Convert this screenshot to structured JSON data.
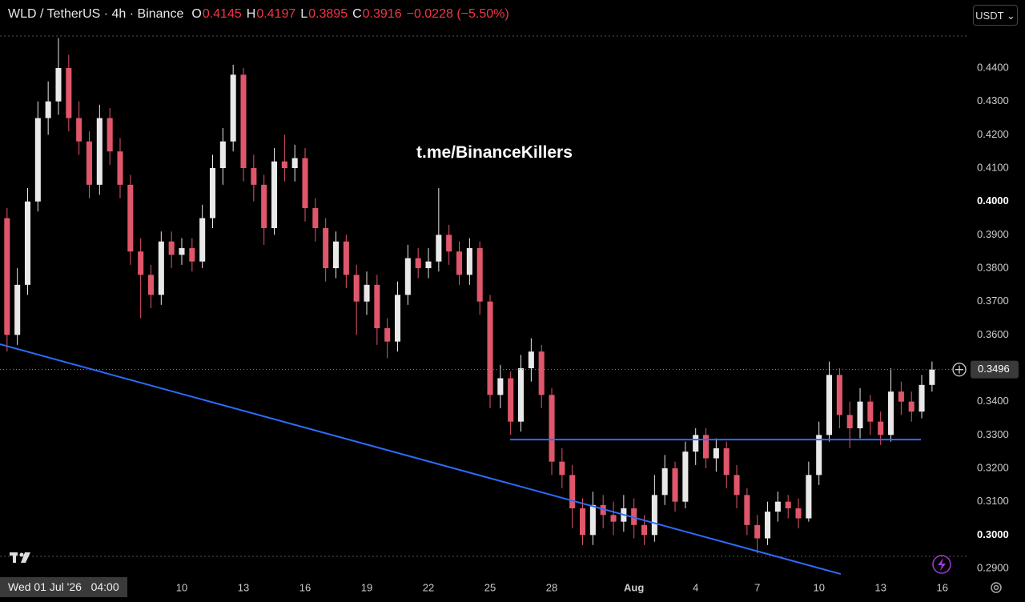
{
  "chart_data": {
    "type": "candlestick",
    "title": "WLD / TetherUS · 4h · Binance",
    "ohlc": [
      {
        "label": "O",
        "value": "0.4145"
      },
      {
        "label": "H",
        "value": "0.4197"
      },
      {
        "label": "L",
        "value": "0.3895"
      },
      {
        "label": "C",
        "value": "0.3916"
      }
    ],
    "change": "−0.0228 (−5.50%)",
    "currency": "USDT",
    "watermark": "t.me/BinanceKillers",
    "crosshair_label": "Wed 01 Jul '26   04:00",
    "up_color": "#e9e9e9",
    "down_color": "#e0566a",
    "line_color": "#2f6bff",
    "x": [
      0,
      0.5,
      1,
      1.5,
      2,
      2.5,
      3,
      3.5,
      4,
      4.5,
      5,
      5.5,
      6,
      6.5,
      7,
      7.5,
      8,
      8.5,
      9,
      9.5,
      10,
      10.5,
      11,
      11.5,
      12,
      12.5,
      13,
      13.5,
      14,
      14.5,
      15,
      15.5,
      16,
      16.5,
      17,
      17.5,
      18,
      18.5,
      19,
      19.5,
      20,
      20.5,
      21,
      21.5,
      22,
      22.5,
      23,
      23.5,
      24,
      24.5,
      25,
      25.5,
      26,
      26.5,
      27,
      27.5,
      28,
      28.5,
      29,
      29.5,
      30,
      30.5,
      31,
      31.5,
      32,
      32.5,
      33,
      33.5,
      34,
      34.5,
      35,
      35.5,
      36,
      36.5,
      37,
      37.5,
      38,
      38.5,
      39,
      39.5,
      40,
      40.5,
      41,
      41.5,
      42,
      42.5,
      43,
      43.5,
      44,
      44.5,
      45,
      45.5
    ],
    "open": [
      0.41,
      0.395,
      0.36,
      0.375,
      0.4,
      0.425,
      0.43,
      0.44,
      0.425,
      0.418,
      0.405,
      0.425,
      0.415,
      0.405,
      0.385,
      0.378,
      0.372,
      0.388,
      0.384,
      0.386,
      0.382,
      0.395,
      0.41,
      0.418,
      0.438,
      0.41,
      0.405,
      0.392,
      0.412,
      0.41,
      0.413,
      0.398,
      0.392,
      0.38,
      0.388,
      0.378,
      0.37,
      0.375,
      0.362,
      0.358,
      0.372,
      0.383,
      0.38,
      0.382,
      0.39,
      0.385,
      0.378,
      0.386,
      0.37,
      0.342,
      0.347,
      0.334,
      0.35,
      0.355,
      0.342,
      0.322,
      0.318,
      0.308,
      0.3,
      0.309,
      0.306,
      0.304,
      0.308,
      0.303,
      0.3,
      0.312,
      0.32,
      0.31,
      0.325,
      0.33,
      0.323,
      0.326,
      0.318,
      0.312,
      0.303,
      0.299,
      0.307,
      0.31,
      0.308,
      0.305,
      0.318,
      0.33,
      0.348,
      0.336,
      0.332,
      0.34,
      0.334,
      0.33,
      0.343,
      0.34,
      0.337,
      0.345
    ],
    "high": [
      0.414,
      0.398,
      0.38,
      0.404,
      0.43,
      0.436,
      0.449,
      0.444,
      0.43,
      0.421,
      0.429,
      0.428,
      0.419,
      0.408,
      0.389,
      0.381,
      0.391,
      0.391,
      0.389,
      0.389,
      0.399,
      0.414,
      0.422,
      0.441,
      0.44,
      0.414,
      0.408,
      0.416,
      0.42,
      0.417,
      0.416,
      0.401,
      0.395,
      0.391,
      0.39,
      0.381,
      0.379,
      0.378,
      0.365,
      0.376,
      0.387,
      0.386,
      0.386,
      0.404,
      0.393,
      0.388,
      0.389,
      0.388,
      0.372,
      0.351,
      0.349,
      0.354,
      0.359,
      0.357,
      0.344,
      0.326,
      0.321,
      0.311,
      0.313,
      0.312,
      0.31,
      0.312,
      0.311,
      0.306,
      0.318,
      0.324,
      0.322,
      0.328,
      0.332,
      0.332,
      0.329,
      0.328,
      0.321,
      0.314,
      0.306,
      0.31,
      0.313,
      0.312,
      0.311,
      0.322,
      0.334,
      0.352,
      0.35,
      0.34,
      0.344,
      0.342,
      0.337,
      0.35,
      0.346,
      0.343,
      0.348,
      0.352
    ],
    "low": [
      0.392,
      0.355,
      0.357,
      0.372,
      0.397,
      0.42,
      0.426,
      0.421,
      0.414,
      0.401,
      0.402,
      0.411,
      0.401,
      0.381,
      0.365,
      0.368,
      0.369,
      0.38,
      0.381,
      0.379,
      0.38,
      0.392,
      0.405,
      0.415,
      0.406,
      0.4,
      0.387,
      0.39,
      0.406,
      0.406,
      0.394,
      0.388,
      0.376,
      0.377,
      0.374,
      0.36,
      0.366,
      0.357,
      0.353,
      0.355,
      0.369,
      0.377,
      0.377,
      0.379,
      0.381,
      0.375,
      0.375,
      0.366,
      0.338,
      0.338,
      0.33,
      0.331,
      0.346,
      0.338,
      0.318,
      0.314,
      0.302,
      0.297,
      0.297,
      0.302,
      0.3,
      0.301,
      0.299,
      0.297,
      0.298,
      0.309,
      0.307,
      0.308,
      0.321,
      0.32,
      0.319,
      0.314,
      0.308,
      0.3,
      0.2945,
      0.297,
      0.304,
      0.305,
      0.302,
      0.304,
      0.315,
      0.328,
      0.332,
      0.326,
      0.329,
      0.33,
      0.327,
      0.328,
      0.336,
      0.334,
      0.335,
      0.343
    ],
    "close": [
      0.395,
      0.36,
      0.375,
      0.4,
      0.425,
      0.43,
      0.44,
      0.425,
      0.418,
      0.405,
      0.425,
      0.415,
      0.405,
      0.385,
      0.378,
      0.372,
      0.388,
      0.384,
      0.386,
      0.382,
      0.395,
      0.41,
      0.418,
      0.438,
      0.41,
      0.405,
      0.392,
      0.412,
      0.41,
      0.413,
      0.398,
      0.392,
      0.38,
      0.388,
      0.378,
      0.37,
      0.375,
      0.362,
      0.358,
      0.372,
      0.383,
      0.38,
      0.382,
      0.39,
      0.385,
      0.378,
      0.386,
      0.37,
      0.342,
      0.347,
      0.334,
      0.35,
      0.355,
      0.342,
      0.322,
      0.318,
      0.308,
      0.3,
      0.309,
      0.306,
      0.304,
      0.308,
      0.303,
      0.3,
      0.312,
      0.32,
      0.31,
      0.325,
      0.33,
      0.323,
      0.326,
      0.318,
      0.312,
      0.303,
      0.299,
      0.307,
      0.31,
      0.308,
      0.305,
      0.318,
      0.33,
      0.348,
      0.336,
      0.332,
      0.34,
      0.334,
      0.33,
      0.343,
      0.34,
      0.337,
      0.345,
      0.3496
    ],
    "last_price": {
      "value": 0.3496,
      "label": "0.3496"
    },
    "trendlines": [
      {
        "x": [
          0.156,
          41.06
        ],
        "y": [
          0.3572,
          0.2883
        ]
      },
      {
        "x": [
          24.97,
          44.96
        ],
        "y": [
          0.3286,
          0.3286
        ]
      }
    ],
    "xlim": [
      0.156,
      47.18
    ],
    "ylim": [
      0.2876,
      0.4604
    ],
    "xticks": [
      {
        "value": 9,
        "label": "10"
      },
      {
        "value": 12,
        "label": "13"
      },
      {
        "value": 15,
        "label": "16"
      },
      {
        "value": 18,
        "label": "19"
      },
      {
        "value": 21,
        "label": "22"
      },
      {
        "value": 24,
        "label": "25"
      },
      {
        "value": 27,
        "label": "28"
      },
      {
        "value": 31,
        "label": "Aug"
      },
      {
        "value": 34,
        "label": "4"
      },
      {
        "value": 37,
        "label": "7"
      },
      {
        "value": 40,
        "label": "10"
      },
      {
        "value": 43,
        "label": "13"
      },
      {
        "value": 46,
        "label": "16"
      }
    ],
    "yticks": [
      {
        "value": 0.44,
        "label": "0.4400"
      },
      {
        "value": 0.43,
        "label": "0.4300"
      },
      {
        "value": 0.42,
        "label": "0.4200"
      },
      {
        "value": 0.41,
        "label": "0.4100"
      },
      {
        "value": 0.4,
        "label": "0.4000"
      },
      {
        "value": 0.39,
        "label": "0.3900"
      },
      {
        "value": 0.38,
        "label": "0.3800"
      },
      {
        "value": 0.37,
        "label": "0.3700"
      },
      {
        "value": 0.36,
        "label": "0.3600"
      },
      {
        "value": 0.34,
        "label": "0.3400"
      },
      {
        "value": 0.33,
        "label": "0.3300"
      },
      {
        "value": 0.32,
        "label": "0.3200"
      },
      {
        "value": 0.31,
        "label": "0.3100"
      },
      {
        "value": 0.3,
        "label": "0.3000"
      },
      {
        "value": 0.29,
        "label": "0.2900"
      }
    ]
  }
}
